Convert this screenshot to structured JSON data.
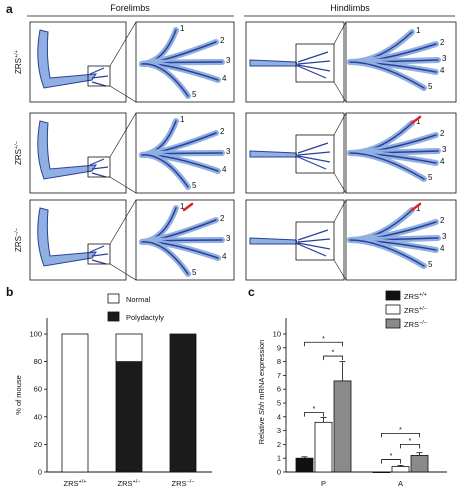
{
  "panel_a": {
    "letter": "a",
    "headers": {
      "left": "Forelimbs",
      "right": "Hindlimbs"
    },
    "rows": [
      {
        "genotype": "ZRS+/+",
        "base": "ZRS",
        "sup": "+/+"
      },
      {
        "genotype": "ZRS+/-",
        "base": "ZRS",
        "sup": "+/−"
      },
      {
        "genotype": "ZRS-/-",
        "base": "ZRS",
        "sup": "−/−"
      }
    ],
    "digits": [
      "1",
      "2",
      "3",
      "4",
      "5"
    ],
    "colors": {
      "stain_dark": "#2c3f9a",
      "stain_light": "#8fb0e0",
      "arrow": "#e0202a"
    }
  },
  "panel_b": {
    "letter": "b",
    "legend": [
      "Normal",
      "Polydactyly"
    ],
    "colors": {
      "Normal": "#ffffff",
      "Polydactyly": "#1b1b1b"
    }
  },
  "panel_c": {
    "letter": "c",
    "legend": [
      {
        "base": "ZRS",
        "sup": "+/+",
        "color": "#111111"
      },
      {
        "base": "ZRS",
        "sup": "+/−",
        "color": "#ffffff"
      },
      {
        "base": "ZRS",
        "sup": "−/−",
        "color": "#8a8a8a"
      }
    ],
    "significance_marker": "*"
  },
  "chart_data": [
    {
      "type": "bar",
      "stacked": true,
      "categories": [
        "ZRS+/+",
        "ZRS+/-",
        "ZRS-/-"
      ],
      "ylabel": "% of mouse",
      "ylim": [
        0,
        100
      ],
      "yticks": [
        "0",
        "20",
        "40",
        "60",
        "80",
        "100"
      ],
      "series": [
        {
          "name": "Polydactyly",
          "values": [
            0,
            80,
            100
          ]
        },
        {
          "name": "Normal",
          "values": [
            100,
            20,
            0
          ]
        }
      ]
    },
    {
      "type": "bar",
      "categories": [
        "P",
        "A"
      ],
      "ylabel_pre": "Relative ",
      "ylabel_ital": "Shh",
      "ylabel_post": " mRNA expression",
      "ylim": [
        0,
        10
      ],
      "yticks": [
        "0",
        "1",
        "2",
        "3",
        "4",
        "5",
        "6",
        "7",
        "8",
        "9",
        "10"
      ],
      "series": [
        {
          "name": "ZRS+/+",
          "values": [
            1.0,
            0.0
          ],
          "errors": [
            0.1,
            0.0
          ]
        },
        {
          "name": "ZRS+/-",
          "values": [
            3.6,
            0.4
          ],
          "errors": [
            0.35,
            0.07
          ]
        },
        {
          "name": "ZRS-/-",
          "values": [
            6.6,
            1.2
          ],
          "errors": [
            1.4,
            0.2
          ]
        }
      ]
    }
  ]
}
